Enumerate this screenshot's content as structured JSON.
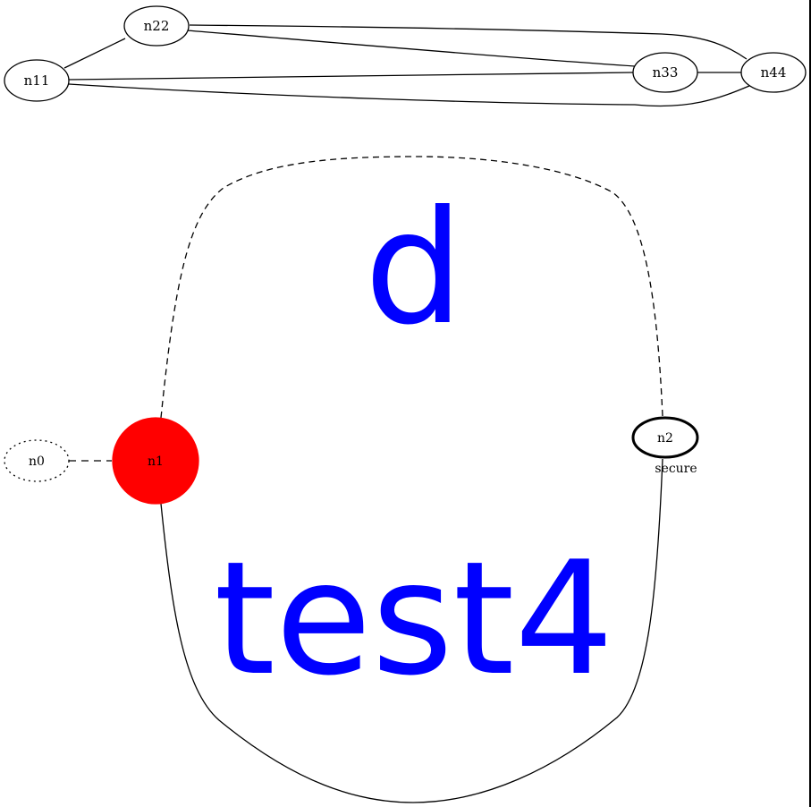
{
  "graph_top": {
    "nodes": [
      {
        "id": "n11",
        "label": "n11"
      },
      {
        "id": "n22",
        "label": "n22"
      },
      {
        "id": "n33",
        "label": "n33"
      },
      {
        "id": "n44",
        "label": "n44"
      }
    ],
    "edges": [
      {
        "from": "n11",
        "to": "n22"
      },
      {
        "from": "n22",
        "to": "n33"
      },
      {
        "from": "n22",
        "to": "n44"
      },
      {
        "from": "n11",
        "to": "n33"
      },
      {
        "from": "n11",
        "to": "n44"
      },
      {
        "from": "n33",
        "to": "n44"
      }
    ]
  },
  "graph_bottom": {
    "nodes": [
      {
        "id": "n0",
        "label": "n0",
        "style": "dotted"
      },
      {
        "id": "n1",
        "label": "n1",
        "style": "filled",
        "fill": "#ff0000"
      },
      {
        "id": "n2",
        "label": "n2",
        "style": "bold",
        "xlabel": "secure"
      }
    ],
    "edges": [
      {
        "from": "n0",
        "to": "n1",
        "style": "dashed"
      },
      {
        "from": "n1",
        "to": "n2",
        "style": "dashed",
        "label": "d"
      },
      {
        "from": "n1",
        "to": "n2",
        "style": "solid",
        "label": "test4"
      }
    ],
    "label_color": "#0000ff"
  }
}
